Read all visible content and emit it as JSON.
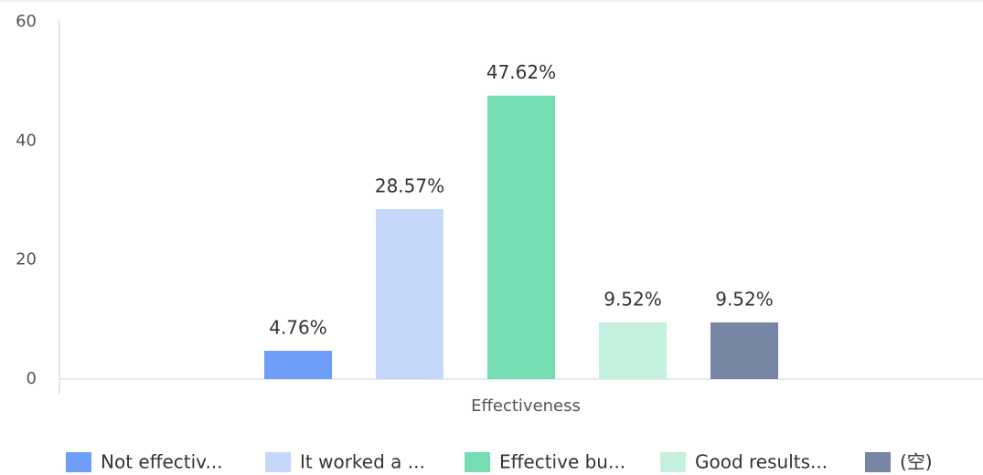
{
  "chart_data": {
    "type": "bar",
    "categories": [
      "Effectiveness"
    ],
    "series": [
      {
        "name": "Not effectiv...",
        "color": "#6f9ef8",
        "values": [
          4.76
        ],
        "value_labels": [
          "4.76%"
        ]
      },
      {
        "name": "It worked a ...",
        "color": "#c6d8fa",
        "values": [
          28.57
        ],
        "value_labels": [
          "28.57%"
        ]
      },
      {
        "name": "Effective bu...",
        "color": "#76dcb1",
        "values": [
          47.62
        ],
        "value_labels": [
          "47.62%"
        ]
      },
      {
        "name": "Good results...",
        "color": "#c4f0de",
        "values": [
          9.52
        ],
        "value_labels": [
          "9.52%"
        ]
      },
      {
        "name": "(空)",
        "color": "#7585a3",
        "values": [
          9.52
        ],
        "value_labels": [
          "9.52%"
        ]
      }
    ],
    "ylim": [
      0,
      60
    ],
    "yticks": [
      0,
      20,
      40,
      60
    ],
    "grid": false,
    "legend": "bottom"
  }
}
